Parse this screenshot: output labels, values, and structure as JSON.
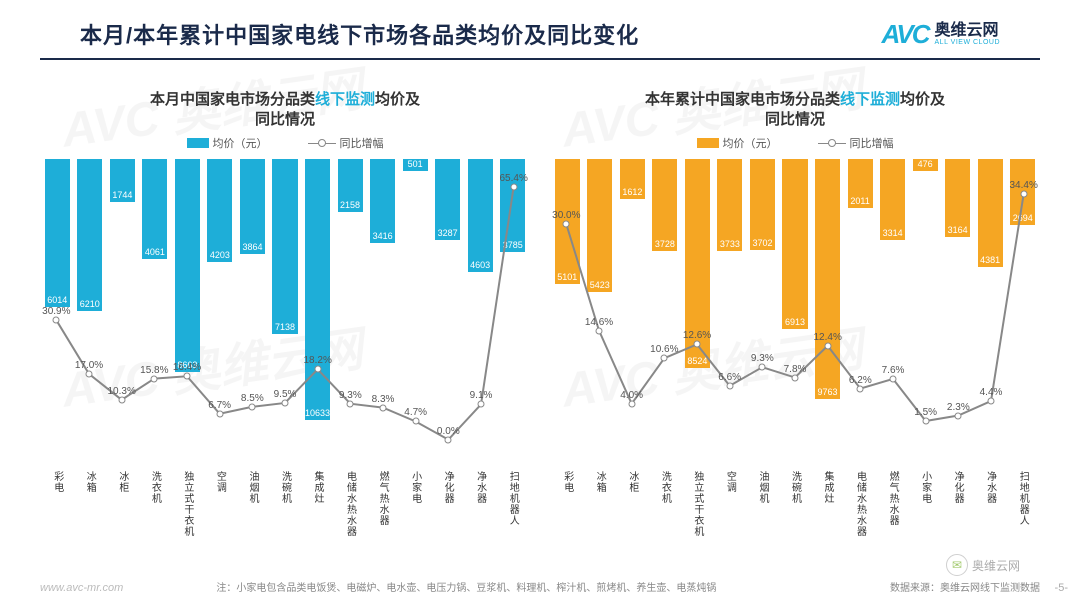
{
  "header": {
    "title": "本月/本年累计中国家电线下市场各品类均价及同比变化",
    "logo_mark": "AVC",
    "logo_cn": "奥维云网",
    "logo_en": "ALL VIEW CLOUD"
  },
  "watermark": "AVC 奥维云网",
  "chart_left": {
    "title_pre": "本月中国家电市场分品类",
    "title_hl": "线下监测",
    "title_post": "均价及同比情况",
    "legend_bar": "均价（元）",
    "legend_line": "同比增幅",
    "bar_color": "#1eaed8",
    "line_color": "#888888",
    "marker_fill": "#ffffff",
    "value_text_color": "#ffffff",
    "pct_text_color": "#555555",
    "y_max_value": 11000,
    "y_max_pct": 70,
    "y_min_pct": -5,
    "categories": [
      "彩电",
      "冰箱",
      "冰柜",
      "洗衣机",
      "独立式干衣机",
      "空调",
      "油烟机",
      "洗碗机",
      "集成灶",
      "电储水热水器",
      "燃气热水器",
      "小家电",
      "净化器",
      "净水器",
      "扫地机器人"
    ],
    "values": [
      6014,
      6210,
      1744,
      4061,
      8663,
      4203,
      3864,
      7138,
      10633,
      2158,
      3416,
      501,
      3287,
      4603,
      3785
    ],
    "pcts": [
      30.9,
      17.0,
      10.3,
      15.8,
      16.4,
      6.7,
      8.5,
      9.5,
      18.2,
      9.3,
      8.3,
      4.7,
      0.0,
      9.1,
      65.4
    ]
  },
  "chart_right": {
    "title_pre": "本年累计中国家电市场分品类",
    "title_hl": "线下监测",
    "title_post": "均价及同比情况",
    "legend_bar": "均价（元）",
    "legend_line": "同比增幅",
    "bar_color": "#f5a623",
    "line_color": "#888888",
    "marker_fill": "#ffffff",
    "value_text_color": "#ffffff",
    "pct_text_color": "#555555",
    "y_max_value": 11000,
    "y_max_pct": 38,
    "y_min_pct": -4,
    "categories": [
      "彩电",
      "冰箱",
      "冰柜",
      "洗衣机",
      "独立式干衣机",
      "空调",
      "油烟机",
      "洗碗机",
      "集成灶",
      "电储水热水器",
      "燃气热水器",
      "小家电",
      "净化器",
      "净水器",
      "扫地机器人"
    ],
    "values": [
      5101,
      5423,
      1612,
      3728,
      8524,
      3733,
      3702,
      6913,
      9763,
      2011,
      3314,
      476,
      3164,
      4381,
      2694
    ],
    "pcts": [
      30.0,
      14.6,
      4.0,
      10.6,
      12.6,
      6.6,
      9.3,
      7.8,
      12.4,
      6.2,
      7.6,
      1.5,
      2.3,
      4.4,
      34.4
    ]
  },
  "footer": {
    "site": "www.avc-mr.com",
    "note": "注：小家电包含品类电饭煲、电磁炉、电水壶、电压力锅、豆浆机、料理机、榨汁机、煎烤机、养生壶、电蒸炖锅",
    "source": "数据来源：奥维云网线下监测数据",
    "page": "-5-",
    "wechat": "奥维云网"
  }
}
